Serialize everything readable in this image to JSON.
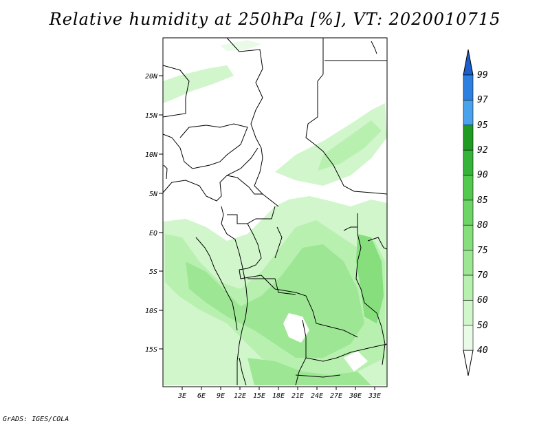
{
  "title": "Relative humidity at 250hPa [%], VT: 2020010715",
  "credit": "GrADS: IGES/COLA",
  "map": {
    "lat_ticks": [
      "20N",
      "15N",
      "10N",
      "5N",
      "EQ",
      "5S",
      "10S",
      "15S"
    ],
    "lon_ticks": [
      "3E",
      "6E",
      "9E",
      "12E",
      "15E",
      "18E",
      "21E",
      "24E",
      "27E",
      "30E",
      "33E"
    ]
  },
  "colorbar": {
    "labels": [
      "40",
      "50",
      "60",
      "70",
      "75",
      "80",
      "85",
      "90",
      "92",
      "95",
      "97",
      "99"
    ],
    "colors": [
      "#e9fbe7",
      "#d1f6cb",
      "#b8f0b0",
      "#9de794",
      "#86de7d",
      "#6dd466",
      "#54c94f",
      "#36b43a",
      "#1f9b24",
      "#4aa2ec",
      "#2e80e0",
      "#1b5fcc"
    ]
  }
}
